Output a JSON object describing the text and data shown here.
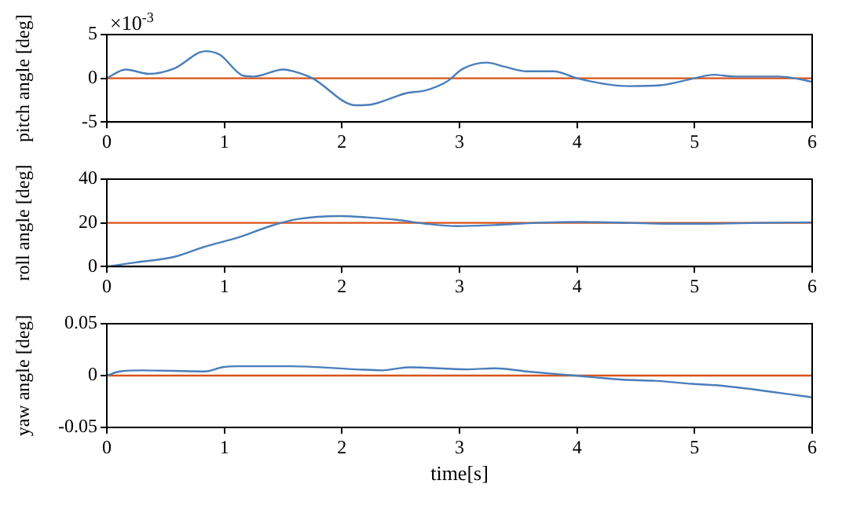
{
  "chart_data": [
    {
      "type": "line",
      "ylabel": "pitch angle [deg]",
      "annotations": [
        "×10$^{-3}$"
      ],
      "xlim": [
        0,
        6
      ],
      "xticks": [
        0,
        1,
        2,
        3,
        4,
        5,
        6
      ],
      "ylim": [
        -5,
        5
      ],
      "yticks": [
        -5,
        0,
        5
      ],
      "grid": false,
      "legend": false,
      "marker": "none",
      "series": [
        {
          "color": "#4a7ebb",
          "x": [
            0,
            0.16,
            0.36,
            0.57,
            0.84,
            0.96,
            1.16,
            1.25,
            1.5,
            1.66,
            1.75,
            2.12,
            2.25,
            2.55,
            2.71,
            2.89,
            3.03,
            3.23,
            3.39,
            3.57,
            3.8,
            4.0,
            4.26,
            4.44,
            4.71,
            5.0,
            5.16,
            5.34,
            5.71,
            5.85,
            6
          ],
          "values": [
            0,
            1,
            0.5,
            1.1,
            3.1,
            2.7,
            0.3,
            0.2,
            1,
            0.5,
            0,
            -3.1,
            -3,
            -1.7,
            -1.4,
            -0.4,
            1.1,
            1.8,
            1.3,
            0.8,
            0.8,
            0,
            -0.7,
            -0.9,
            -0.8,
            0,
            0.4,
            0.2,
            0.2,
            0,
            -0.4
          ]
        },
        {
          "color": "#d95319",
          "x": [
            0,
            6
          ],
          "values": [
            0,
            0
          ]
        }
      ]
    },
    {
      "type": "line",
      "ylabel": "roll angle [deg]",
      "xlim": [
        0,
        6
      ],
      "xticks": [
        0,
        1,
        2,
        3,
        4,
        5,
        6
      ],
      "ylim": [
        0,
        40
      ],
      "yticks": [
        0,
        20,
        40
      ],
      "grid": false,
      "legend": false,
      "marker": "none",
      "series": [
        {
          "color": "#4a7ebb",
          "x": [
            0,
            0.25,
            0.57,
            0.84,
            1.12,
            1.39,
            1.62,
            1.98,
            2.21,
            2.48,
            2.71,
            2.98,
            3.3,
            3.66,
            4.02,
            4.44,
            4.75,
            5.1,
            5.57,
            6
          ],
          "values": [
            0,
            1.9,
            4.4,
            9.2,
            13.3,
            18.5,
            21.7,
            23.1,
            22.5,
            21.3,
            19.6,
            18.5,
            19,
            20,
            20.4,
            20,
            19.6,
            19.6,
            20,
            20.2
          ]
        },
        {
          "color": "#d95319",
          "x": [
            0,
            6
          ],
          "values": [
            20,
            20
          ]
        }
      ]
    },
    {
      "type": "line",
      "xlabel": "time[s]",
      "ylabel": "yaw angle [deg]",
      "xlim": [
        0,
        6
      ],
      "xticks": [
        0,
        1,
        2,
        3,
        4,
        5,
        6
      ],
      "ylim": [
        -0.05,
        0.05
      ],
      "yticks": [
        -0.05,
        0,
        0.05
      ],
      "grid": false,
      "legend": false,
      "marker": "none",
      "series": [
        {
          "color": "#4a7ebb",
          "x": [
            0,
            0.11,
            0.3,
            0.84,
            0.98,
            1.12,
            1.57,
            2.12,
            2.34,
            2.57,
            3.07,
            3.3,
            3.57,
            3.98,
            4.39,
            4.66,
            4.98,
            5.25,
            6
          ],
          "values": [
            0,
            0.004,
            0.005,
            0.004,
            0.008,
            0.009,
            0.009,
            0.006,
            0.005,
            0.008,
            0.006,
            0.007,
            0.004,
            0,
            -0.004,
            -0.005,
            -0.008,
            -0.01,
            -0.021
          ]
        },
        {
          "color": "#d95319",
          "x": [
            0,
            6
          ],
          "values": [
            0,
            0
          ]
        }
      ]
    }
  ]
}
